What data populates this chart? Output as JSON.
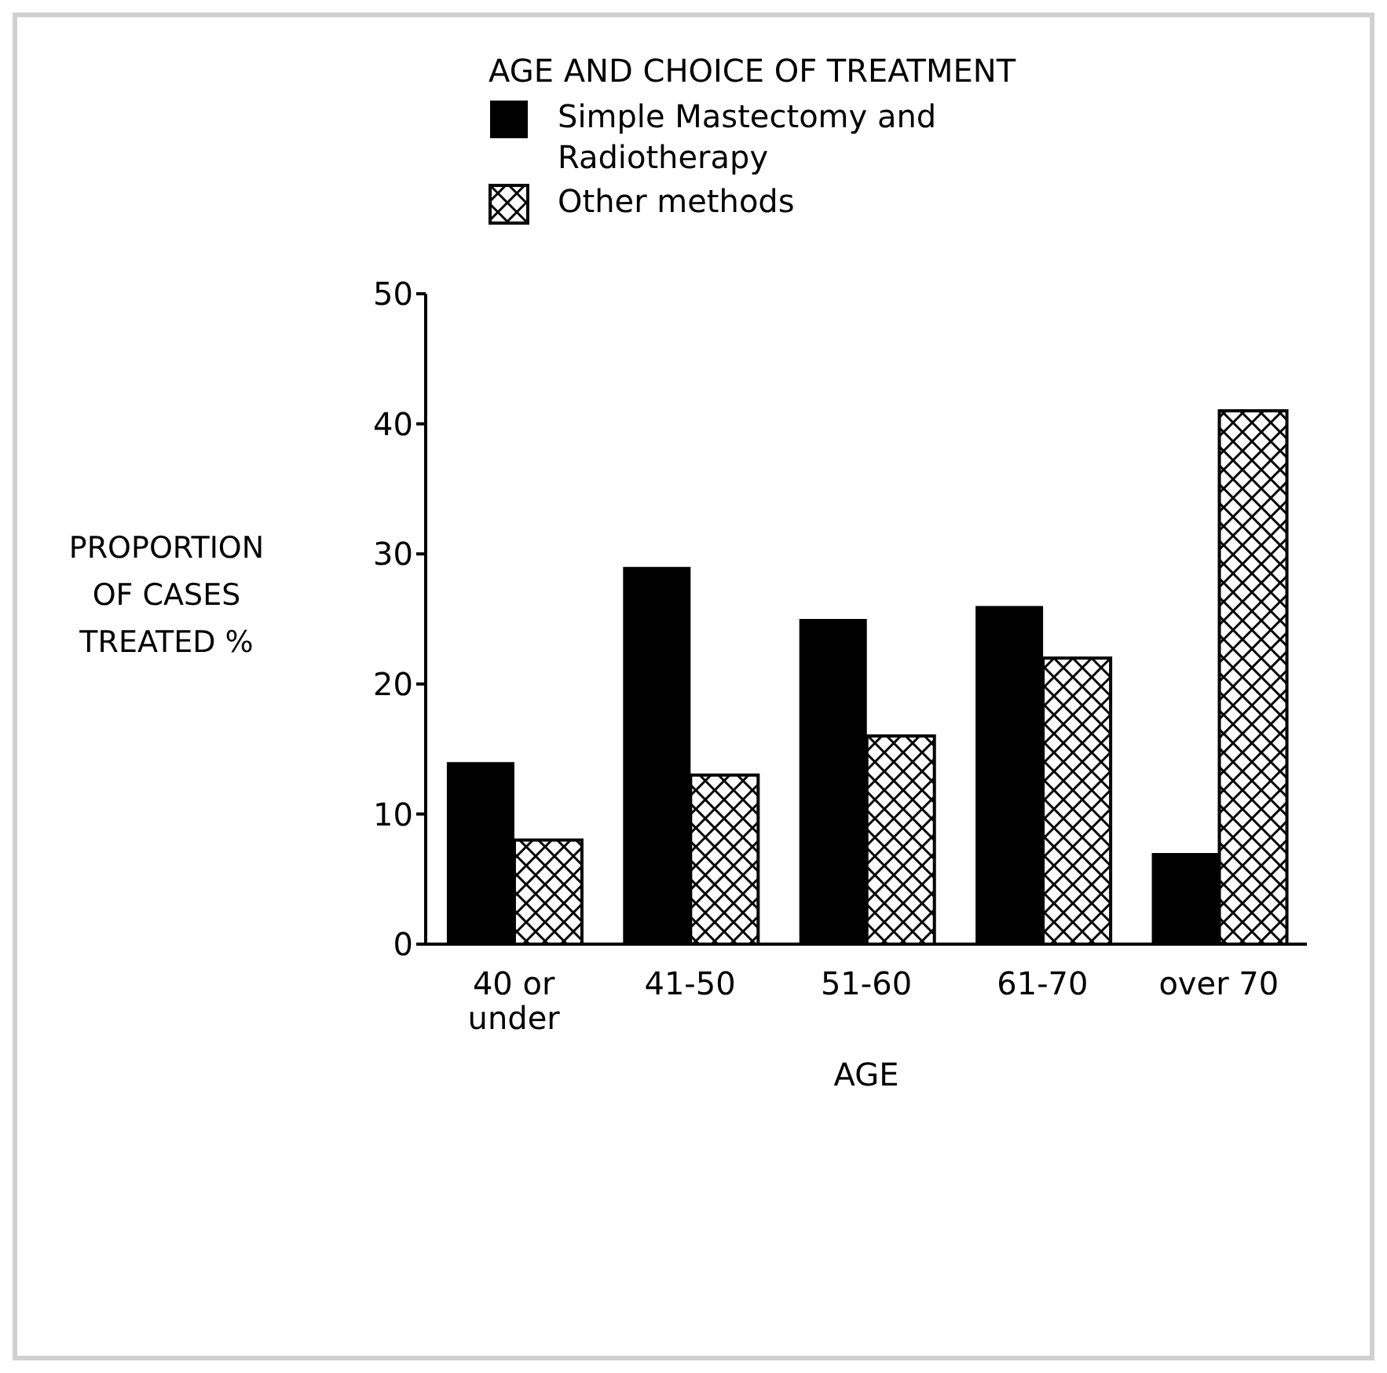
{
  "chart_data": {
    "type": "bar",
    "legend_title": "AGE AND CHOICE OF TREATMENT",
    "xlabel": "AGE",
    "ylabel": "PROPORTION OF CASES TREATED %",
    "categories": [
      "40 or under",
      "41-50",
      "51-60",
      "61-70",
      "over 70"
    ],
    "series": [
      {
        "name": "Simple Mastectomy and Radiotherapy",
        "color": "#000000",
        "values": [
          14,
          29,
          25,
          26,
          7
        ]
      },
      {
        "name": "Other methods",
        "color": "#000000",
        "values": [
          8,
          13,
          16,
          22,
          41
        ]
      }
    ],
    "ylim": [
      0,
      50
    ],
    "yticks": [
      0,
      10,
      20,
      30,
      40,
      50
    ],
    "legend": "top"
  }
}
